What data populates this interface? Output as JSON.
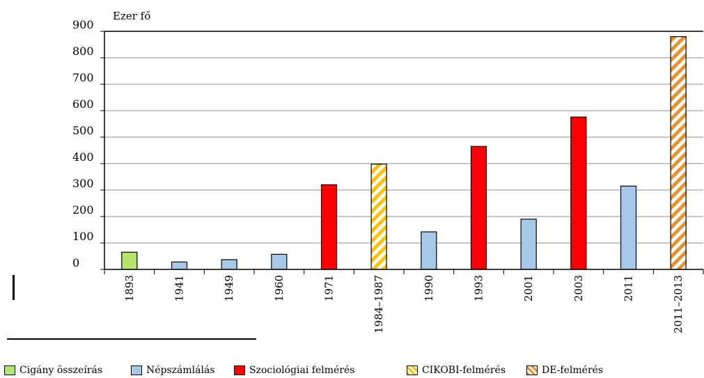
{
  "chart_data": {
    "type": "bar",
    "ylabel": "Ezer fő",
    "ylim": [
      0,
      900
    ],
    "yticks": [
      0,
      100,
      200,
      300,
      400,
      500,
      600,
      700,
      800,
      900
    ],
    "ytick_labels": [
      "0",
      "100",
      "200",
      "300",
      "400",
      "500",
      "600",
      "700",
      "800",
      "900"
    ],
    "grid": true,
    "categories": [
      "1893",
      "1941",
      "1949",
      "1960",
      "1971",
      "1984–1987",
      "1990",
      "1993",
      "2001",
      "2003",
      "2011",
      "2011–2013"
    ],
    "category_labels": [
      "1893",
      "1941",
      "1949",
      "1960",
      "1971",
      "1984–1987",
      "1990",
      "1993",
      "2001",
      "2003",
      "2011",
      "2011–2013"
    ],
    "values": [
      65,
      28,
      37,
      57,
      320,
      398,
      142,
      465,
      190,
      576,
      315,
      880
    ],
    "source": [
      "cigany",
      "nepszamlalas",
      "nepszamlalas",
      "nepszamlalas",
      "szociologiai",
      "cikobi",
      "nepszamlalas",
      "szociologiai",
      "nepszamlalas",
      "szociologiai",
      "nepszamlalas",
      "de"
    ],
    "legend_position": "bottom",
    "legend": [
      {
        "key": "cigany",
        "label": "Cigány összeírás"
      },
      {
        "key": "nepszamlalas",
        "label": "Népszámlálás"
      },
      {
        "key": "szociologiai",
        "label": "Szociológiai felmérés"
      },
      {
        "key": "cikobi",
        "label": "CIKOBI-felmérés"
      },
      {
        "key": "de",
        "label": "DE-felmérés"
      }
    ],
    "colors": {
      "cigany": "#b5e66b",
      "nepszamlalas": "#a8c8ea",
      "szociologiai": "#ff0000",
      "cikobi_stripe": "#ffc000",
      "de_stripe": "#e8922d"
    }
  }
}
